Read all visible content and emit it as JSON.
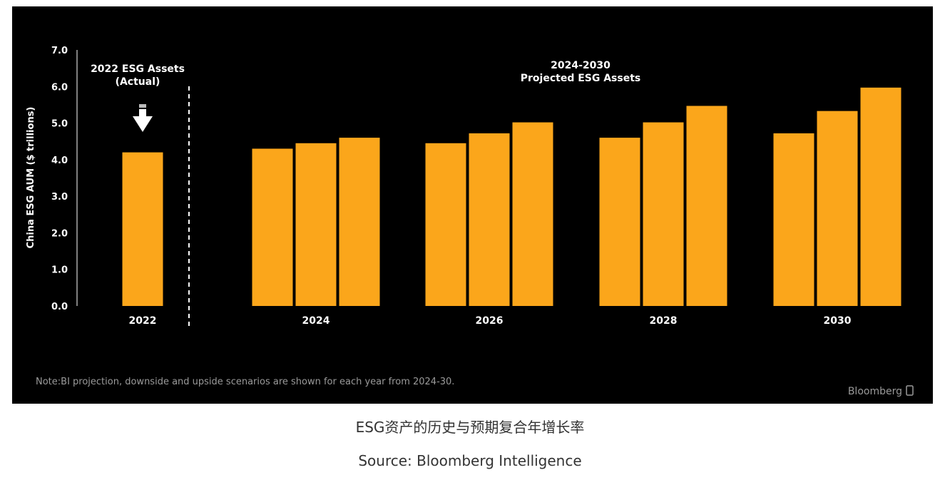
{
  "chart_data": {
    "type": "bar",
    "ylabel": "China ESG AUM ($ trillions)",
    "ylim": [
      0,
      7
    ],
    "yticks": [
      "0.0",
      "1.0",
      "2.0",
      "3.0",
      "4.0",
      "5.0",
      "6.0",
      "7.0"
    ],
    "grid": false,
    "bar_color": "#fba61b",
    "groups": [
      {
        "label": "2022",
        "values": [
          4.2
        ]
      },
      {
        "label": "2024",
        "values": [
          4.3,
          4.45,
          4.6
        ]
      },
      {
        "label": "2026",
        "values": [
          4.45,
          4.72,
          5.02
        ]
      },
      {
        "label": "2028",
        "values": [
          4.6,
          5.02,
          5.47
        ]
      },
      {
        "label": "2030",
        "values": [
          4.72,
          5.33,
          5.97
        ]
      }
    ],
    "annotations": {
      "actual_line1": "2022 ESG Assets",
      "actual_line2": "(Actual)",
      "projected_line1": "2024-2030",
      "projected_line2": "Projected ESG Assets"
    },
    "note": "Note:BI projection, downside and upside scenarios are shown for each year from 2024-30.",
    "brand": "Bloomberg"
  },
  "caption": {
    "title": "ESG资产的历史与预期复合年增长率",
    "source": "Source: Bloomberg Intelligence"
  }
}
